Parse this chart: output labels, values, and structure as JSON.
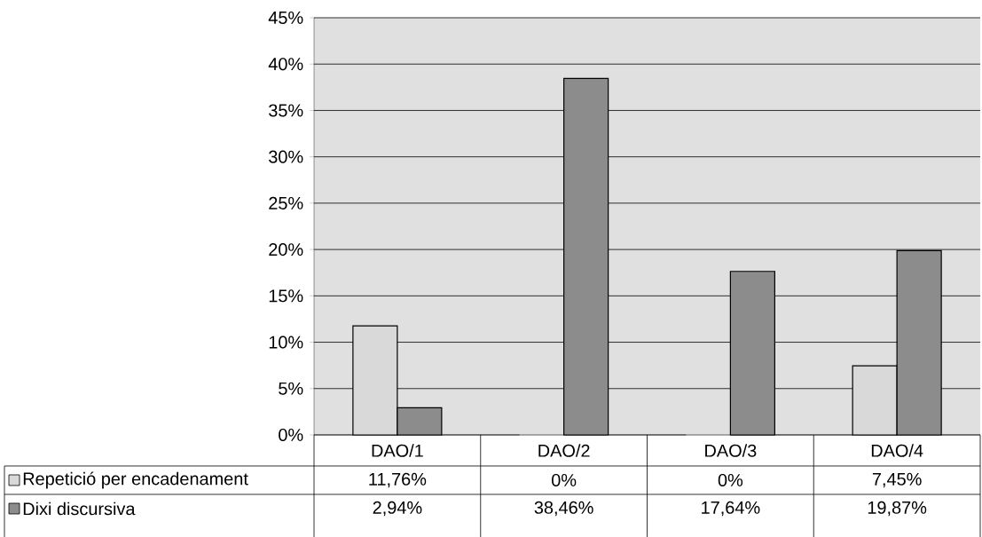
{
  "chart_data": {
    "type": "bar",
    "categories": [
      "DAO/1",
      "DAO/2",
      "DAO/3",
      "DAO/4"
    ],
    "series": [
      {
        "name": "Repetició per encadenament",
        "color": "#d9d9d9",
        "values": [
          11.76,
          0,
          0,
          7.45
        ],
        "value_labels": [
          "11,76%",
          "0%",
          "0%",
          "7,45%"
        ]
      },
      {
        "name": "Dixi discursiva",
        "color": "#8c8c8c",
        "values": [
          2.94,
          38.46,
          17.64,
          19.87
        ],
        "value_labels": [
          "2,94%",
          "38,46%",
          "17,64%",
          "19,87%"
        ]
      }
    ],
    "ylim": [
      0,
      45
    ],
    "yticks": [
      {
        "value": 0,
        "label": "0%"
      },
      {
        "value": 5,
        "label": "5%"
      },
      {
        "value": 10,
        "label": "10%"
      },
      {
        "value": 15,
        "label": "15%"
      },
      {
        "value": 20,
        "label": "20%"
      },
      {
        "value": 25,
        "label": "25%"
      },
      {
        "value": 30,
        "label": "30%"
      },
      {
        "value": 35,
        "label": "35%"
      },
      {
        "value": 40,
        "label": "40%"
      },
      {
        "value": 45,
        "label": "45%"
      }
    ],
    "grid": "y",
    "legend": "bottom left"
  }
}
